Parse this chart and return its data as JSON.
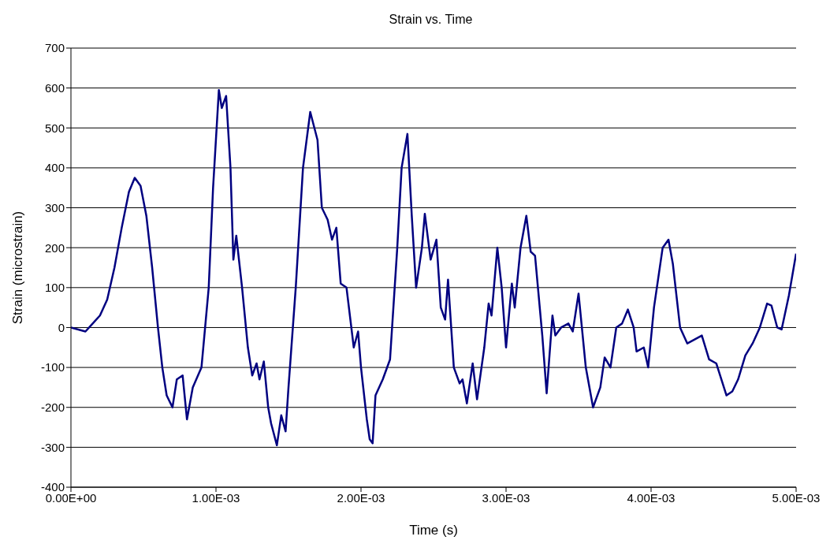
{
  "chart_data": {
    "type": "line",
    "title": "Strain vs. Time",
    "xlabel": "Time (s)",
    "ylabel": "Strain (microstrain)",
    "x": [
      0,
      0.0001,
      0.00015,
      0.0002,
      0.00025,
      0.0003,
      0.00035,
      0.0004,
      0.00044,
      0.00048,
      0.00052,
      0.00056,
      0.0006,
      0.00063,
      0.00066,
      0.0007,
      0.00073,
      0.00077,
      0.0008,
      0.00084,
      0.0009,
      0.00095,
      0.00098,
      0.00102,
      0.00104,
      0.00107,
      0.0011,
      0.00112,
      0.00114,
      0.00118,
      0.00122,
      0.00125,
      0.00128,
      0.0013,
      0.00133,
      0.00136,
      0.00138,
      0.00142,
      0.00145,
      0.00148,
      0.0015,
      0.00155,
      0.0016,
      0.00165,
      0.0017,
      0.00173,
      0.00177,
      0.0018,
      0.00183,
      0.00186,
      0.0019,
      0.00195,
      0.00198,
      0.002,
      0.00204,
      0.00206,
      0.00208,
      0.0021,
      0.00215,
      0.0022,
      0.00225,
      0.00228,
      0.00232,
      0.00235,
      0.00238,
      0.00242,
      0.00244,
      0.00248,
      0.00252,
      0.00255,
      0.00258,
      0.0026,
      0.00264,
      0.00268,
      0.0027,
      0.00273,
      0.00277,
      0.0028,
      0.00285,
      0.00288,
      0.0029,
      0.00294,
      0.00297,
      0.003,
      0.00304,
      0.00306,
      0.0031,
      0.00314,
      0.00317,
      0.0032,
      0.00325,
      0.00328,
      0.00332,
      0.00334,
      0.00338,
      0.00343,
      0.00346,
      0.0035,
      0.00355,
      0.0036,
      0.00365,
      0.00368,
      0.00372,
      0.00376,
      0.0038,
      0.00384,
      0.00388,
      0.0039,
      0.00395,
      0.00398,
      0.00402,
      0.00408,
      0.00412,
      0.00415,
      0.0042,
      0.00425,
      0.0043,
      0.00435,
      0.0044,
      0.00445,
      0.00452,
      0.00456,
      0.0046,
      0.00465,
      0.0047,
      0.00475,
      0.0048,
      0.00483,
      0.00487,
      0.0049,
      0.00495,
      0.005
    ],
    "series": [
      {
        "color": "#000080",
        "values": [
          0,
          -10,
          10,
          30,
          70,
          150,
          250,
          340,
          375,
          355,
          280,
          150,
          0,
          -100,
          -170,
          -200,
          -130,
          -120,
          -230,
          -150,
          -100,
          100,
          350,
          595,
          550,
          580,
          400,
          170,
          230,
          100,
          -50,
          -120,
          -90,
          -130,
          -85,
          -200,
          -240,
          -295,
          -220,
          -260,
          -150,
          100,
          400,
          540,
          470,
          300,
          270,
          220,
          250,
          110,
          100,
          -50,
          -10,
          -100,
          -230,
          -280,
          -290,
          -170,
          -130,
          -80,
          200,
          400,
          485,
          280,
          100,
          200,
          285,
          170,
          220,
          50,
          20,
          120,
          -100,
          -140,
          -130,
          -190,
          -90,
          -180,
          -50,
          60,
          30,
          200,
          100,
          -50,
          110,
          50,
          200,
          280,
          190,
          180,
          -20,
          -165,
          30,
          -20,
          0,
          10,
          -10,
          85,
          -100,
          -200,
          -150,
          -75,
          -100,
          0,
          10,
          45,
          0,
          -60,
          -50,
          -100,
          50,
          200,
          220,
          160,
          0,
          -40,
          -30,
          -20,
          -80,
          -90,
          -170,
          -160,
          -130,
          -70,
          -40,
          0,
          60,
          55,
          0,
          -5,
          80,
          185
        ]
      }
    ],
    "xlim": [
      0,
      0.005
    ],
    "xticks": [
      {
        "value": 0,
        "label": "0.00E+00"
      },
      {
        "value": 0.001,
        "label": "1.00E-03"
      },
      {
        "value": 0.002,
        "label": "2.00E-03"
      },
      {
        "value": 0.003,
        "label": "3.00E-03"
      },
      {
        "value": 0.004,
        "label": "4.00E-03"
      },
      {
        "value": 0.005,
        "label": "5.00E-03"
      }
    ],
    "ylim": [
      -400,
      700
    ],
    "yticks": [
      -400,
      -300,
      -200,
      -100,
      0,
      100,
      200,
      300,
      400,
      500,
      600,
      700
    ],
    "grid": "y",
    "marker": "none",
    "line_style": "solid",
    "legend": false
  }
}
